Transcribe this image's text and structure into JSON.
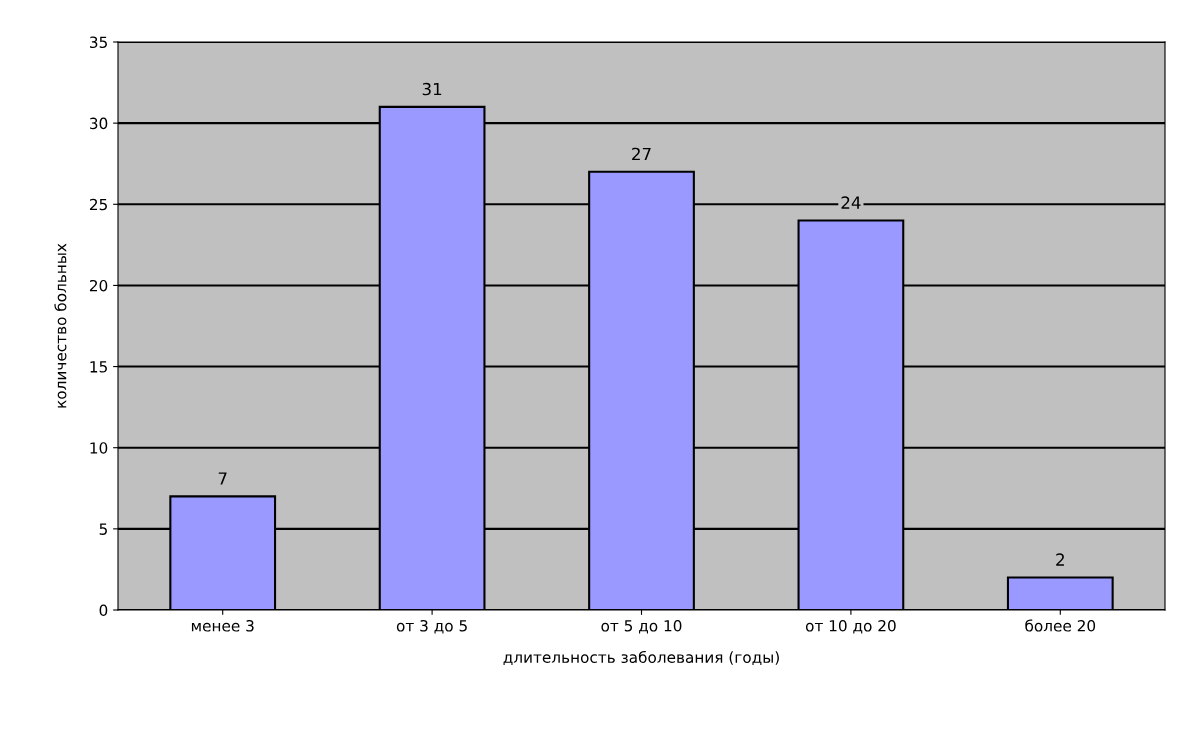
{
  "chart_data": {
    "type": "bar",
    "categories": [
      "менее 3",
      "от 3 до 5",
      "от 5 до 10",
      "от 10 до 20",
      "более 20"
    ],
    "values": [
      7,
      31,
      27,
      24,
      2
    ],
    "color": "#9999ff",
    "xlabel": "длительность заболевания (годы)",
    "ylabel": "количество больных",
    "ylim": [
      0,
      35
    ],
    "yticks": [
      0,
      5,
      10,
      15,
      20,
      25,
      30,
      35
    ],
    "grid": "y",
    "data_labels": true,
    "legend": false
  }
}
